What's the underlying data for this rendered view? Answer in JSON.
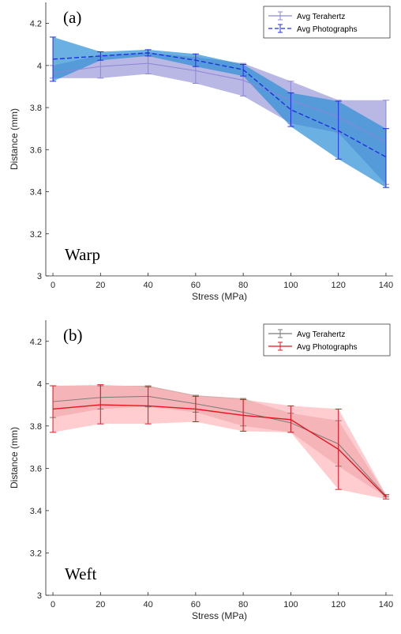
{
  "chart_data": [
    {
      "type": "line",
      "panel_tag": "(a)",
      "annotation": "Warp",
      "xlabel": "Stress (MPa)",
      "ylabel": "Distance (mm)",
      "x": [
        0,
        20,
        40,
        60,
        80,
        100,
        120,
        140
      ],
      "xticks": [
        "0",
        "20",
        "40",
        "60",
        "80",
        "100",
        "120",
        "140"
      ],
      "yticks": [
        "3",
        "3.2",
        "3.4",
        "3.6",
        "3.8",
        "4",
        "4.2"
      ],
      "xlim": [
        -3,
        143
      ],
      "ylim": [
        3.0,
        4.3
      ],
      "legend_position": "top-right",
      "series": [
        {
          "name": "Avg Terahertz",
          "color": "#8c86d6",
          "fill": "#9b98d8",
          "dashed": false,
          "values": [
            3.965,
            3.995,
            4.01,
            3.975,
            3.93,
            3.835,
            3.755,
            3.635
          ],
          "lower": [
            3.94,
            3.94,
            3.96,
            3.915,
            3.855,
            3.725,
            3.68,
            3.435
          ],
          "upper": [
            4.0,
            4.05,
            4.06,
            4.04,
            4.01,
            3.925,
            3.835,
            3.835
          ]
        },
        {
          "name": "Avg Photographs",
          "color": "#1f2fe0",
          "fill": "#2b8fd6",
          "dashed": true,
          "values": [
            4.03,
            4.045,
            4.06,
            4.025,
            3.98,
            3.79,
            3.69,
            3.565
          ],
          "lower": [
            3.925,
            4.025,
            4.045,
            3.995,
            3.95,
            3.71,
            3.555,
            3.42
          ],
          "upper": [
            4.135,
            4.065,
            4.075,
            4.055,
            4.005,
            3.87,
            3.83,
            3.7
          ]
        }
      ]
    },
    {
      "type": "line",
      "panel_tag": "(b)",
      "annotation": "Weft",
      "xlabel": "Stress (MPa)",
      "ylabel": "Distance (mm)",
      "x": [
        0,
        20,
        40,
        60,
        80,
        100,
        120,
        140
      ],
      "xticks": [
        "0",
        "20",
        "40",
        "60",
        "80",
        "100",
        "120",
        "140"
      ],
      "yticks": [
        "3",
        "3.2",
        "3.4",
        "3.6",
        "3.8",
        "4",
        "4.2"
      ],
      "xlim": [
        -3,
        143
      ],
      "ylim": [
        3.0,
        4.3
      ],
      "legend_position": "top-right",
      "series": [
        {
          "name": "Avg Terahertz",
          "color": "#7a7a7a",
          "fill": "#cf8a8a",
          "dashed": false,
          "values": [
            3.915,
            3.935,
            3.94,
            3.905,
            3.865,
            3.815,
            3.715,
            3.47
          ],
          "lower": [
            3.84,
            3.88,
            3.89,
            3.865,
            3.8,
            3.77,
            3.61,
            3.465
          ],
          "upper": [
            3.99,
            3.99,
            3.99,
            3.945,
            3.93,
            3.86,
            3.825,
            3.475
          ]
        },
        {
          "name": "Avg Photographs",
          "color": "#e8141e",
          "fill": "#ffb8bc",
          "dashed": false,
          "values": [
            3.88,
            3.9,
            3.895,
            3.88,
            3.85,
            3.83,
            3.69,
            3.465
          ],
          "lower": [
            3.77,
            3.81,
            3.81,
            3.82,
            3.775,
            3.77,
            3.5,
            3.455
          ],
          "upper": [
            3.99,
            3.995,
            3.985,
            3.94,
            3.925,
            3.895,
            3.88,
            3.475
          ]
        }
      ]
    }
  ]
}
